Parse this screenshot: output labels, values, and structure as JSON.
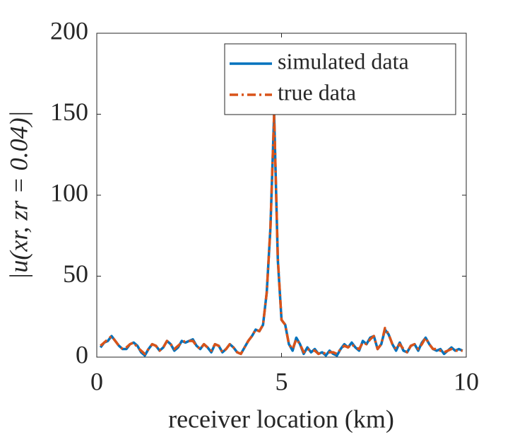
{
  "chart_data": {
    "type": "line",
    "xlabel": "receiver location (km)",
    "ylabel": "|u(xr, zr = 0.04)|",
    "x": [
      0.1,
      0.2,
      0.3,
      0.4,
      0.5,
      0.6,
      0.7,
      0.8,
      0.9,
      1.0,
      1.1,
      1.2,
      1.3,
      1.4,
      1.5,
      1.6,
      1.7,
      1.8,
      1.9,
      2.0,
      2.1,
      2.2,
      2.3,
      2.4,
      2.5,
      2.6,
      2.7,
      2.8,
      2.9,
      3.0,
      3.1,
      3.2,
      3.3,
      3.4,
      3.5,
      3.6,
      3.7,
      3.8,
      3.9,
      4.0,
      4.1,
      4.2,
      4.3,
      4.4,
      4.5,
      4.6,
      4.7,
      4.8,
      4.9,
      5.0,
      5.1,
      5.2,
      5.3,
      5.4,
      5.5,
      5.6,
      5.7,
      5.8,
      5.9,
      6.0,
      6.1,
      6.2,
      6.3,
      6.4,
      6.5,
      6.6,
      6.7,
      6.8,
      6.9,
      7.0,
      7.1,
      7.2,
      7.3,
      7.4,
      7.5,
      7.6,
      7.7,
      7.8,
      7.9,
      8.0,
      8.1,
      8.2,
      8.3,
      8.4,
      8.5,
      8.6,
      8.7,
      8.8,
      8.9,
      9.0,
      9.1,
      9.2,
      9.3,
      9.4,
      9.5,
      9.6,
      9.7,
      9.8,
      9.9
    ],
    "series": [
      {
        "name": "simulated data",
        "color": "#0072bd",
        "dash": "solid",
        "values": [
          6,
          9,
          10,
          13,
          10,
          7,
          5,
          5,
          8,
          9,
          7,
          3,
          1,
          5,
          8,
          7,
          4,
          6,
          10,
          8,
          4,
          6,
          10,
          9,
          10,
          11,
          7,
          5,
          8,
          6,
          3,
          8,
          7,
          3,
          5,
          8,
          6,
          3,
          2,
          6,
          10,
          13,
          17,
          16,
          20,
          40,
          80,
          150,
          60,
          23,
          20,
          8,
          4,
          12,
          8,
          2,
          6,
          3,
          5,
          2,
          3,
          1,
          4,
          2,
          1,
          5,
          8,
          6,
          9,
          6,
          4,
          10,
          8,
          12,
          13,
          5,
          8,
          17,
          14,
          8,
          4,
          9,
          4,
          3,
          7,
          8,
          4,
          9,
          12,
          8,
          5,
          4,
          5,
          2,
          4,
          6,
          4,
          5,
          4
        ]
      },
      {
        "name": "true data",
        "color": "#d95319",
        "dash": "dashdot",
        "values": [
          7,
          9,
          11,
          13,
          10,
          7,
          5,
          6,
          8,
          9,
          6,
          4,
          2,
          5,
          8,
          7,
          4,
          6,
          10,
          8,
          5,
          7,
          9,
          10,
          10,
          10,
          7,
          5,
          8,
          6,
          4,
          8,
          7,
          3,
          5,
          8,
          6,
          3,
          2,
          6,
          10,
          13,
          17,
          16,
          20,
          40,
          80,
          150,
          61,
          23,
          20,
          8,
          5,
          11,
          8,
          3,
          5,
          4,
          4,
          2,
          3,
          2,
          3,
          3,
          2,
          5,
          7,
          6,
          8,
          6,
          5,
          9,
          8,
          11,
          13,
          5,
          8,
          18,
          14,
          8,
          5,
          8,
          5,
          3,
          7,
          8,
          5,
          8,
          12,
          8,
          5,
          5,
          4,
          3,
          4,
          5,
          4,
          4,
          4
        ]
      }
    ],
    "xlim": [
      0,
      10
    ],
    "xticks": [
      0,
      5,
      10
    ],
    "ylim": [
      0,
      200
    ],
    "yticks": [
      0,
      50,
      100,
      150,
      200
    ],
    "legend": "upper right",
    "grid": false
  }
}
